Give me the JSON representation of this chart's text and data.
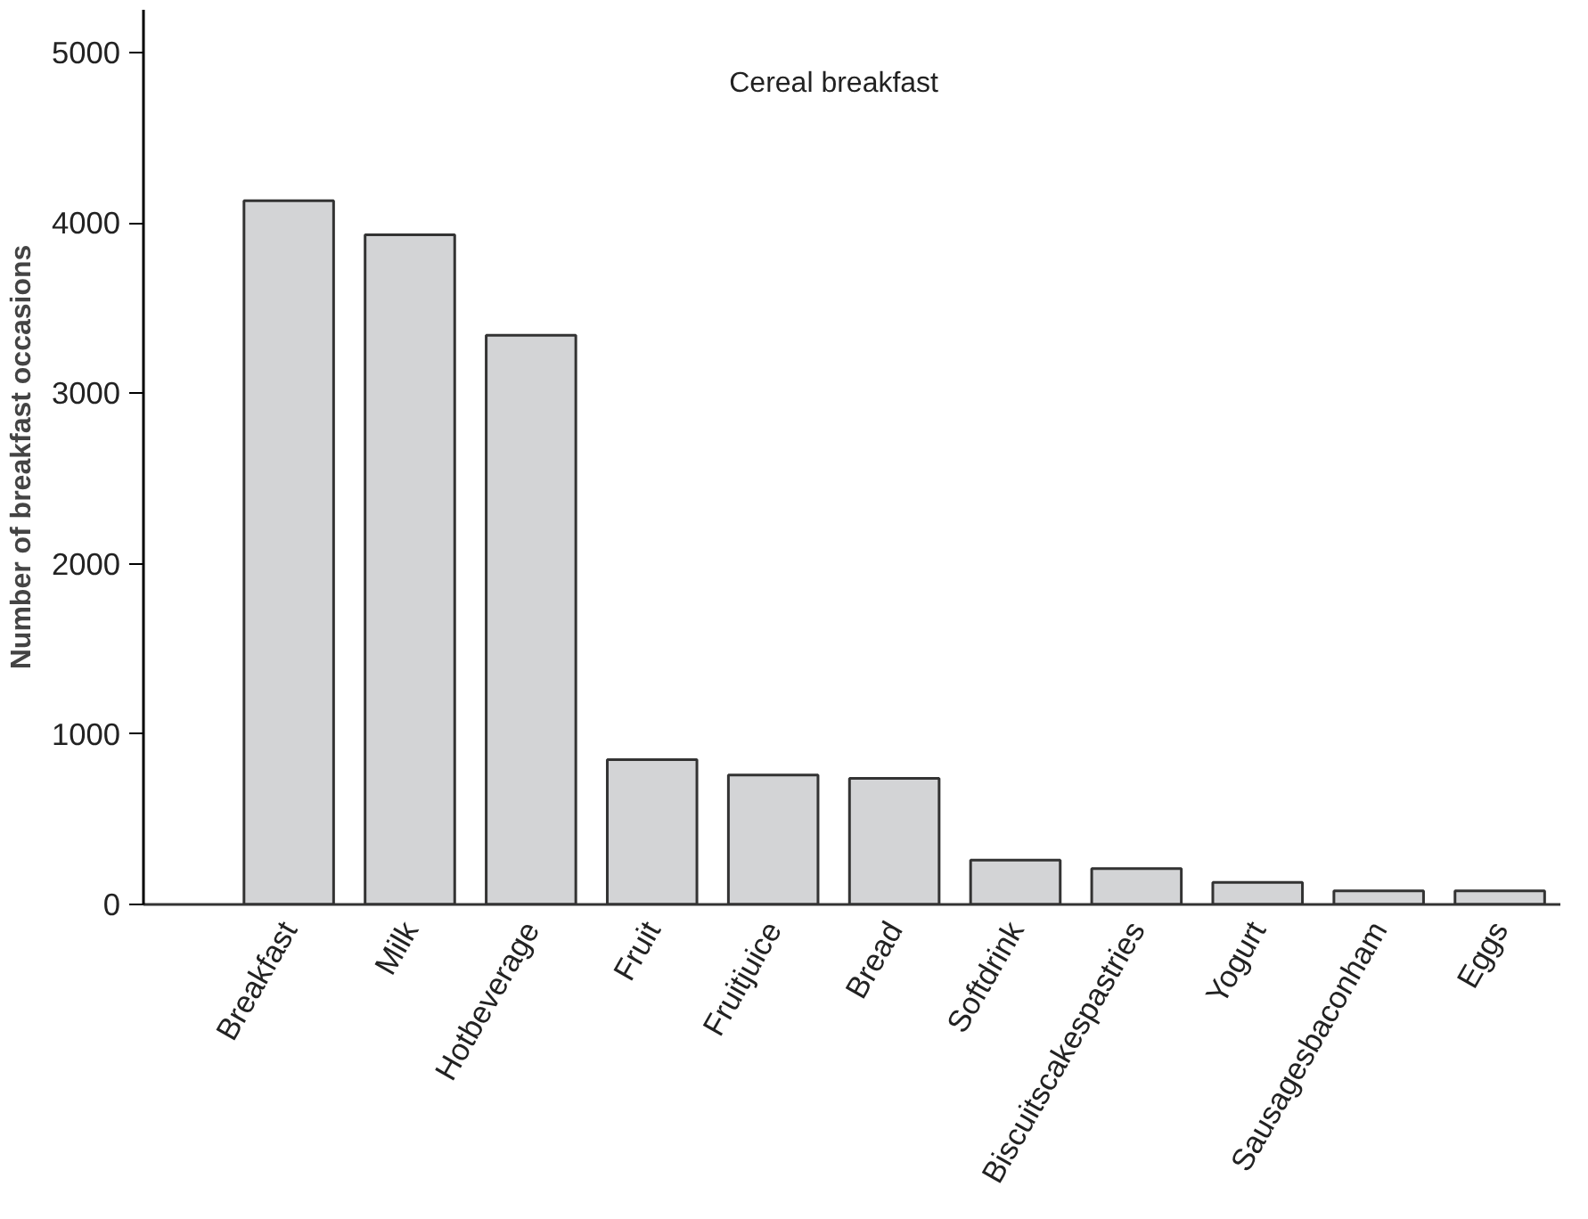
{
  "chart_data": {
    "type": "bar",
    "annotations": [
      "Cereal breakfast"
    ],
    "ylabel": "Number of breakfast occasions",
    "categories": [
      "Breakfast",
      "Milk",
      "Hotbeverage",
      "Fruit",
      "Fruitjuice",
      "Bread",
      "Softdrink",
      "Biscuitscakespastries",
      "Yogurt",
      "Sausagesbaconham",
      "Eggs"
    ],
    "values": [
      4130,
      3930,
      3340,
      850,
      760,
      740,
      260,
      210,
      130,
      80,
      80
    ],
    "color": "#d3d4d6",
    "ylim": [
      0,
      5250
    ],
    "yticks": [
      0,
      1000,
      2000,
      3000,
      4000,
      5000
    ],
    "grid": false
  }
}
